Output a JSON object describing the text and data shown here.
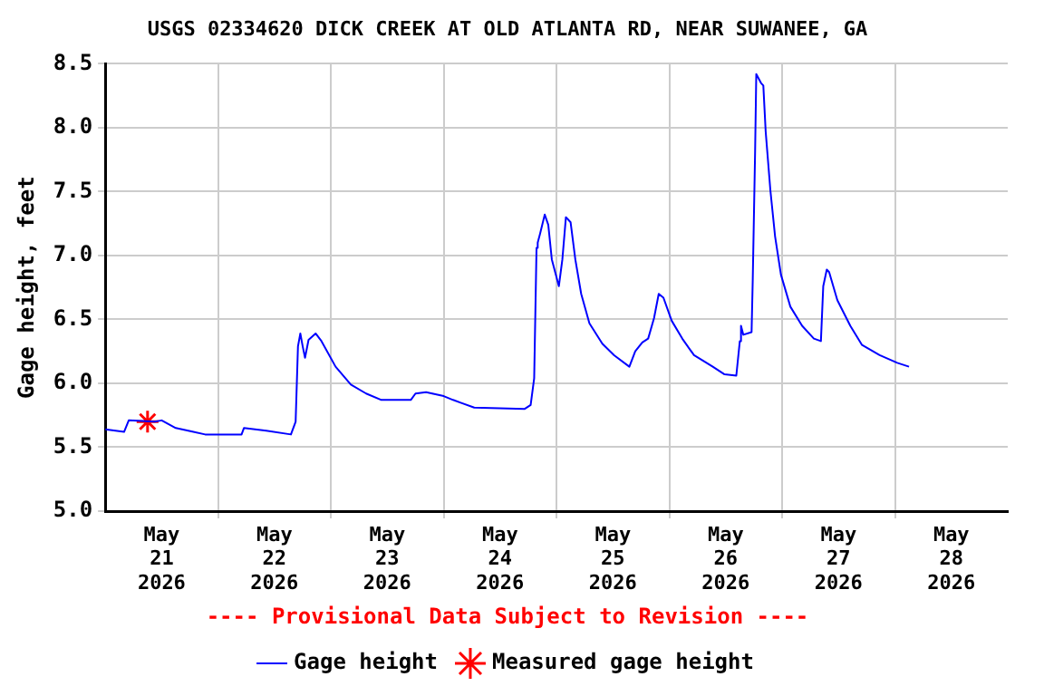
{
  "chart_data": {
    "type": "line",
    "title": "USGS 02334620 DICK CREEK AT OLD ATLANTA RD, NEAR SUWANEE, GA",
    "ylabel": "Gage height, feet",
    "annotations": [
      "---- Provisional Data Subject to Revision ----"
    ],
    "xlim": [
      "2026-05-21T00:00",
      "2026-05-29T00:00"
    ],
    "xticks": [
      {
        "value": "2026-05-21T12:00",
        "label": "May 21 2026"
      },
      {
        "value": "2026-05-22T00:00",
        "label": null
      },
      {
        "value": "2026-05-22T12:00",
        "label": "May 22 2026"
      },
      {
        "value": "2026-05-23T00:00",
        "label": null
      },
      {
        "value": "2026-05-23T12:00",
        "label": "May 23 2026"
      },
      {
        "value": "2026-05-24T00:00",
        "label": null
      },
      {
        "value": "2026-05-24T12:00",
        "label": "May 24 2026"
      },
      {
        "value": "2026-05-25T00:00",
        "label": null
      },
      {
        "value": "2026-05-25T12:00",
        "label": "May 25 2026"
      },
      {
        "value": "2026-05-26T00:00",
        "label": null
      },
      {
        "value": "2026-05-26T12:00",
        "label": "May 26 2026"
      },
      {
        "value": "2026-05-27T00:00",
        "label": null
      },
      {
        "value": "2026-05-27T12:00",
        "label": "May 27 2026"
      },
      {
        "value": "2026-05-28T00:00",
        "label": null
      },
      {
        "value": "2026-05-28T12:00",
        "label": "May 28 2026"
      }
    ],
    "ylim": [
      5,
      8.5
    ],
    "yticks": [
      {
        "value": 5,
        "label": "5.0"
      },
      5.5,
      {
        "value": 6,
        "label": "6.0"
      },
      6.5,
      {
        "value": 7,
        "label": "7.0"
      },
      7.5,
      {
        "value": 8,
        "label": "8.0"
      },
      8.5
    ],
    "grid": true,
    "legend": "bottom",
    "series": [
      {
        "name": "Gage height",
        "type": "line",
        "color": "#0000ff",
        "marker": "none",
        "x": [
          "2026-05-21T00:00",
          "2026-05-21T04:00",
          "2026-05-21T05:00",
          "2026-05-21T10:30",
          "2026-05-21T12:00",
          "2026-05-21T15:00",
          "2026-05-21T18:45",
          "2026-05-21T21:15",
          "2026-05-22T05:00",
          "2026-05-22T05:30",
          "2026-05-22T10:15",
          "2026-05-22T15:30",
          "2026-05-22T16:30",
          "2026-05-22T17:00",
          "2026-05-22T17:30",
          "2026-05-22T18:00",
          "2026-05-22T18:30",
          "2026-05-22T19:15",
          "2026-05-22T20:45",
          "2026-05-22T22:00",
          "2026-05-23T01:00",
          "2026-05-23T04:15",
          "2026-05-23T07:30",
          "2026-05-23T10:45",
          "2026-05-23T17:00",
          "2026-05-23T18:00",
          "2026-05-23T20:15",
          "2026-05-24T00:00",
          "2026-05-24T02:00",
          "2026-05-24T06:30",
          "2026-05-24T17:15",
          "2026-05-24T18:30",
          "2026-05-24T19:15",
          "2026-05-24T19:45",
          "2026-05-24T20:00",
          "2026-05-24T20:30",
          "2026-05-24T21:30",
          "2026-05-24T22:15",
          "2026-05-24T23:00",
          "2026-05-25T00:30",
          "2026-05-25T01:15",
          "2026-05-25T02:00",
          "2026-05-25T03:00",
          "2026-05-25T04:00",
          "2026-05-25T05:15",
          "2026-05-25T07:00",
          "2026-05-25T09:45",
          "2026-05-25T12:15",
          "2026-05-25T15:30",
          "2026-05-25T16:45",
          "2026-05-25T18:15",
          "2026-05-25T19:30",
          "2026-05-25T20:45",
          "2026-05-25T21:45",
          "2026-05-25T22:45",
          "2026-05-26T00:30",
          "2026-05-26T02:45",
          "2026-05-26T05:15",
          "2026-05-26T09:15",
          "2026-05-26T11:45",
          "2026-05-26T14:15",
          "2026-05-26T15:00",
          "2026-05-26T15:15",
          "2026-05-26T15:45",
          "2026-05-26T17:30",
          "2026-05-26T17:45",
          "2026-05-26T18:15",
          "2026-05-26T18:30",
          "2026-05-26T19:30",
          "2026-05-26T20:00",
          "2026-05-26T20:30",
          "2026-05-26T21:30",
          "2026-05-26T22:30",
          "2026-05-26T23:45",
          "2026-05-27T01:45",
          "2026-05-27T04:15",
          "2026-05-27T06:45",
          "2026-05-27T08:15",
          "2026-05-27T08:45",
          "2026-05-27T09:30",
          "2026-05-27T10:00",
          "2026-05-27T11:45",
          "2026-05-27T14:30",
          "2026-05-27T17:00",
          "2026-05-27T20:45",
          "2026-05-28T00:30",
          "2026-05-28T03:00"
        ],
        "values": [
          5.64,
          5.62,
          5.71,
          5.7,
          5.71,
          5.65,
          5.62,
          5.6,
          5.6,
          5.65,
          5.63,
          5.6,
          5.7,
          6.29,
          6.39,
          6.29,
          6.2,
          6.34,
          6.39,
          6.33,
          6.13,
          5.99,
          5.92,
          5.87,
          5.87,
          5.92,
          5.93,
          5.9,
          5.87,
          5.81,
          5.8,
          5.83,
          6.04,
          7.06,
          7.1,
          7.17,
          7.32,
          7.24,
          6.97,
          6.76,
          6.97,
          7.3,
          7.26,
          6.97,
          6.7,
          6.47,
          6.31,
          6.22,
          6.13,
          6.25,
          6.32,
          6.35,
          6.51,
          6.7,
          6.67,
          6.49,
          6.35,
          6.22,
          6.13,
          6.07,
          6.06,
          6.33,
          6.45,
          6.38,
          6.4,
          6.81,
          7.81,
          8.42,
          8.35,
          8.33,
          7.97,
          7.51,
          7.15,
          6.85,
          6.6,
          6.45,
          6.35,
          6.33,
          6.76,
          6.89,
          6.87,
          6.65,
          6.45,
          6.3,
          6.22,
          6.16,
          6.13
        ]
      },
      {
        "name": "Measured gage height",
        "type": "scatter",
        "color": "#ff0000",
        "marker": "cross",
        "x": [
          "2026-05-21T09:00"
        ],
        "values": [
          5.7
        ]
      }
    ]
  }
}
